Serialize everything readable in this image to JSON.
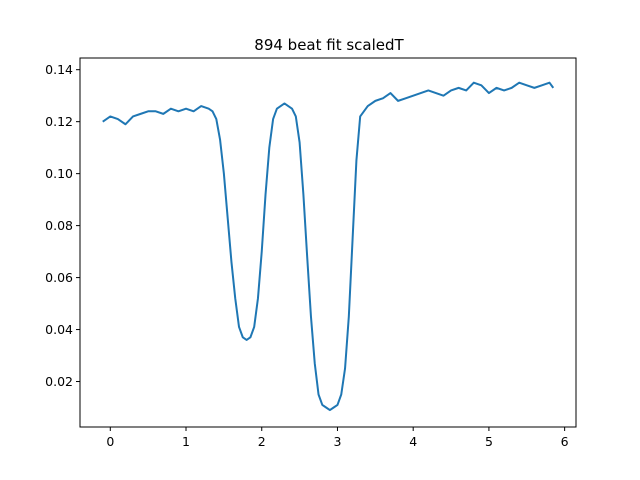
{
  "chart_data": {
    "type": "line",
    "title": "894 beat fit scaledT",
    "xlabel": "",
    "ylabel": "",
    "xlim": [
      -0.4,
      6.15
    ],
    "ylim": [
      0.0025,
      0.1445
    ],
    "xticks": [
      0,
      1,
      2,
      3,
      4,
      5,
      6
    ],
    "yticks": [
      0.02,
      0.04,
      0.06,
      0.08,
      0.1,
      0.12,
      0.14
    ],
    "xtick_labels": [
      "0",
      "1",
      "2",
      "3",
      "4",
      "5",
      "6"
    ],
    "ytick_labels": [
      "0.02",
      "0.04",
      "0.06",
      "0.08",
      "0.10",
      "0.12",
      "0.14"
    ],
    "grid": false,
    "line_color": "#1f77b4",
    "series": [
      {
        "x": [
          -0.1,
          0.0,
          0.1,
          0.2,
          0.3,
          0.4,
          0.5,
          0.6,
          0.7,
          0.8,
          0.9,
          1.0,
          1.1,
          1.2,
          1.3,
          1.35,
          1.4,
          1.45,
          1.5,
          1.55,
          1.6,
          1.65,
          1.7,
          1.75,
          1.8,
          1.85,
          1.9,
          1.95,
          2.0,
          2.05,
          2.1,
          2.15,
          2.2,
          2.25,
          2.3,
          2.35,
          2.4,
          2.45,
          2.5,
          2.55,
          2.6,
          2.65,
          2.7,
          2.75,
          2.8,
          2.85,
          2.9,
          2.95,
          3.0,
          3.05,
          3.1,
          3.15,
          3.2,
          3.25,
          3.3,
          3.4,
          3.5,
          3.6,
          3.7,
          3.8,
          3.9,
          4.0,
          4.1,
          4.2,
          4.3,
          4.4,
          4.5,
          4.6,
          4.7,
          4.8,
          4.9,
          5.0,
          5.1,
          5.2,
          5.3,
          5.4,
          5.5,
          5.6,
          5.7,
          5.8,
          5.85
        ],
        "y": [
          0.12,
          0.122,
          0.121,
          0.119,
          0.122,
          0.123,
          0.124,
          0.124,
          0.123,
          0.125,
          0.124,
          0.125,
          0.124,
          0.126,
          0.125,
          0.124,
          0.121,
          0.113,
          0.1,
          0.083,
          0.066,
          0.052,
          0.041,
          0.037,
          0.036,
          0.037,
          0.041,
          0.052,
          0.07,
          0.092,
          0.11,
          0.121,
          0.125,
          0.126,
          0.127,
          0.126,
          0.125,
          0.122,
          0.112,
          0.092,
          0.068,
          0.045,
          0.027,
          0.015,
          0.011,
          0.01,
          0.009,
          0.01,
          0.011,
          0.015,
          0.025,
          0.045,
          0.075,
          0.105,
          0.122,
          0.126,
          0.128,
          0.129,
          0.131,
          0.128,
          0.129,
          0.13,
          0.131,
          0.132,
          0.131,
          0.13,
          0.132,
          0.133,
          0.132,
          0.135,
          0.134,
          0.131,
          0.133,
          0.132,
          0.133,
          0.135,
          0.134,
          0.133,
          0.134,
          0.135,
          0.133
        ]
      }
    ]
  }
}
